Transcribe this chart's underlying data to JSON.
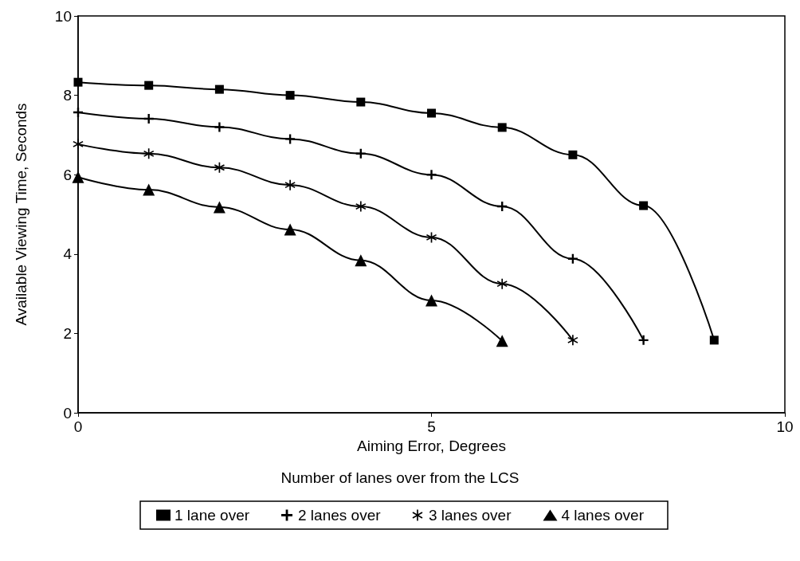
{
  "chart_data": {
    "type": "line",
    "xlabel": "Aiming Error, Degrees",
    "ylabel": "Available Viewing Time, Seconds",
    "legend_title": "Number of lanes over from the LCS",
    "legend": "bottom",
    "grid": false,
    "line_style": "solid",
    "xlim": [
      0,
      10
    ],
    "xticks": [
      0,
      5,
      10
    ],
    "ylim": [
      0,
      10
    ],
    "yticks": [
      0,
      2,
      4,
      6,
      8,
      10
    ],
    "series": [
      {
        "name": "1 lane over",
        "color": "#000000",
        "marker": "square",
        "x": [
          0,
          1,
          2,
          3,
          4,
          5,
          6,
          7,
          8,
          9
        ],
        "values": [
          8.33,
          8.25,
          8.15,
          8.0,
          7.83,
          7.55,
          7.19,
          6.5,
          5.22,
          1.83
        ]
      },
      {
        "name": "2 lanes over",
        "color": "#000000",
        "marker": "cross",
        "x": [
          0,
          1,
          2,
          3,
          4,
          5,
          6,
          7,
          8
        ],
        "values": [
          7.57,
          7.41,
          7.2,
          6.9,
          6.53,
          6.0,
          5.2,
          3.88,
          1.83
        ]
      },
      {
        "name": "3 lanes over",
        "color": "#000000",
        "marker": "star",
        "x": [
          0,
          1,
          2,
          3,
          4,
          5,
          6,
          7
        ],
        "values": [
          6.77,
          6.53,
          6.18,
          5.74,
          5.2,
          4.42,
          3.25,
          1.83
        ]
      },
      {
        "name": "4 lanes over",
        "color": "#000000",
        "marker": "triangle",
        "x": [
          0,
          1,
          2,
          3,
          4,
          5,
          6
        ],
        "values": [
          5.94,
          5.62,
          5.18,
          4.62,
          3.84,
          2.83,
          1.81
        ]
      }
    ]
  }
}
